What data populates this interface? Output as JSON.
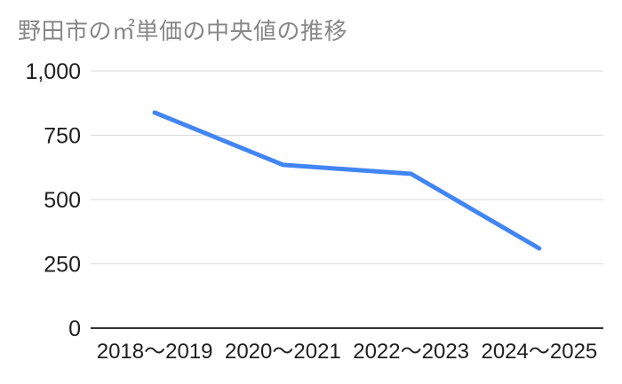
{
  "chart_data": {
    "type": "line",
    "title": "野田市の㎡単価の中央値の推移",
    "categories": [
      "2018〜2019",
      "2020〜2021",
      "2022〜2023",
      "2024〜2025"
    ],
    "values": [
      838,
      635,
      600,
      310
    ],
    "xlabel": "",
    "ylabel": "",
    "ylim": [
      0,
      1000
    ],
    "yticks": [
      0,
      250,
      500,
      750,
      1000
    ],
    "ytick_labels": [
      "0",
      "250",
      "500",
      "750",
      "1,000"
    ],
    "grid": true,
    "legend_position": "none",
    "colors": {
      "line": "#4285f4",
      "title_text": "#878787",
      "axis_label_text": "#1f1f1f",
      "gridline": "#dadada",
      "baseline": "#333333",
      "background": "#ffffff"
    }
  }
}
